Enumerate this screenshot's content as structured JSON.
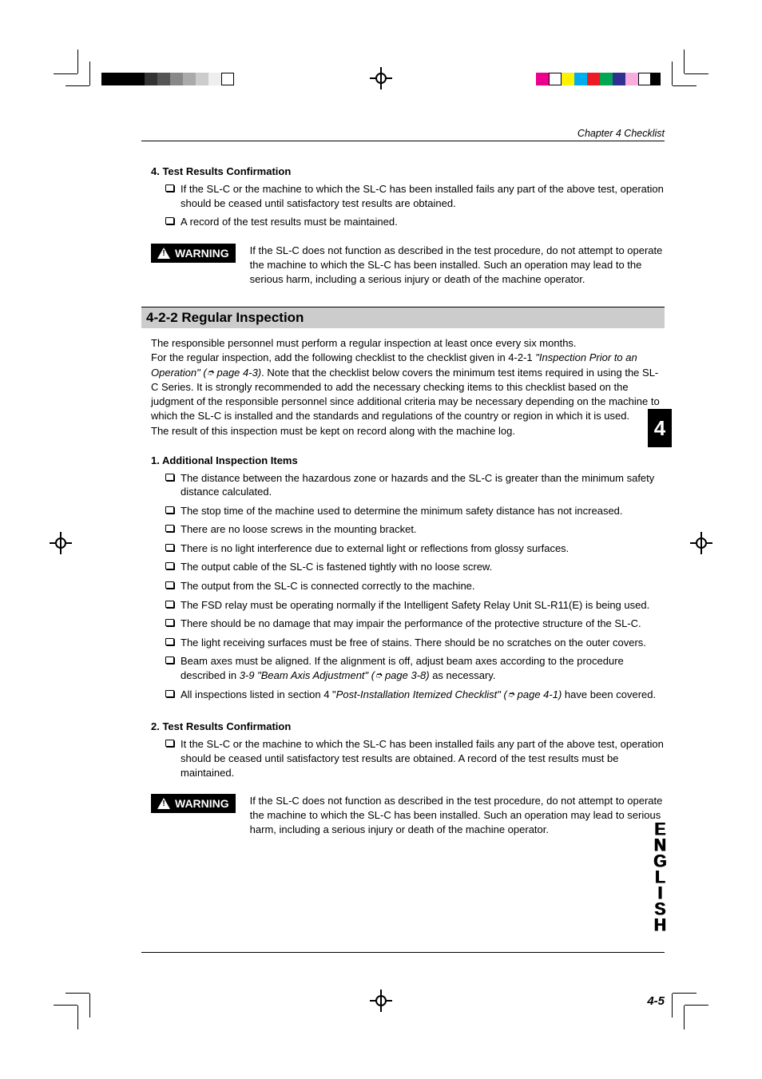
{
  "header": {
    "chapter": "Chapter 4  Checklist"
  },
  "sec_4": {
    "heading": "4.  Test Results Confirmation",
    "items": [
      "If the SL-C or the machine to which the SL-C has been installed fails any part of the above test, operation should be ceased until satisfactory test results are obtained.",
      "A record of the test results must be maintained."
    ]
  },
  "warning1": {
    "label": "WARNING",
    "text": "If the SL-C does not function as described in the test procedure, do not attempt to operate the machine to which the SL-C has been installed. Such an operation may lead to the serious harm, including a serious injury or death of the machine operator."
  },
  "section_title": "4-2-2 Regular Inspection",
  "intro": {
    "p1a": "The responsible personnel must perform a regular inspection at least once every six months.",
    "p1b": "For the regular inspection, add the following checklist to the checklist given in 4-2-1 ",
    "p1b_italic": "\"Inspection Prior to an Operation\" (",
    "p1b_ref": " page 4-3)",
    "p1c": ".   Note that the checklist below covers the minimum test items required in using the SL-C Series.  It is strongly recommended to add the necessary checking items to this checklist based on the judgment of the responsible personnel since additional criteria may be necessary depending on the machine to which the SL-C is installed and the standards and regulations of the country or region in which it is used.",
    "p2": "The result of this inspection must be kept on record along with the machine log."
  },
  "sec_1": {
    "heading": "1.  Additional Inspection Items",
    "items": [
      {
        "t": "The distance between the hazardous zone or hazards and the SL-C is greater than the minimum safety distance calculated."
      },
      {
        "t": "The stop time of the machine used to determine the minimum safety distance has not increased."
      },
      {
        "t": "There are no loose screws in the mounting bracket."
      },
      {
        "t": "There is no light interference due to external light or reflections from glossy surfaces."
      },
      {
        "t": "The output cable of the SL-C is fastened tightly with no loose screw."
      },
      {
        "t": "The output from the SL-C is connected correctly to the machine."
      },
      {
        "t": "The FSD relay must be operating normally if the Intelligent Safety Relay Unit SL-R11(E) is being used."
      },
      {
        "t": "There should be no damage that may impair the performance of the protective structure of the SL-C."
      },
      {
        "t": "The light receiving surfaces must be free of stains.  There should be no scratches on the outer covers."
      },
      {
        "pre": "Beam axes must be aligned.  If the alignment is off, adjust beam axes according to the procedure described in ",
        "italic": "3-9 \"Beam Axis Adjustment\" (",
        "ref": " page 3-8)",
        "post": " as necessary."
      },
      {
        "pre": "All inspections listed in section 4 \"",
        "italic": "Post-Installation Itemized Checklist\" (",
        "ref": " page 4-1)",
        "post": " have been covered."
      }
    ]
  },
  "sec_2": {
    "heading": "2.  Test Results Confirmation",
    "items": [
      "It the SL-C or the machine to which the SL-C has been installed fails any part of the above test, operation should be ceased until satisfactory test results are obtained. A record of the test results must be maintained."
    ]
  },
  "warning2": {
    "label": "WARNING",
    "text": "If the SL-C does not function as described in the test procedure, do not attempt to operate the machine to which the SL-C has been installed. Such an operation may lead to serious harm, including a serious injury or death of the machine operator."
  },
  "tabs": {
    "chapter": "4",
    "english": "ENGLISH"
  },
  "footer": {
    "page": "4-5"
  }
}
